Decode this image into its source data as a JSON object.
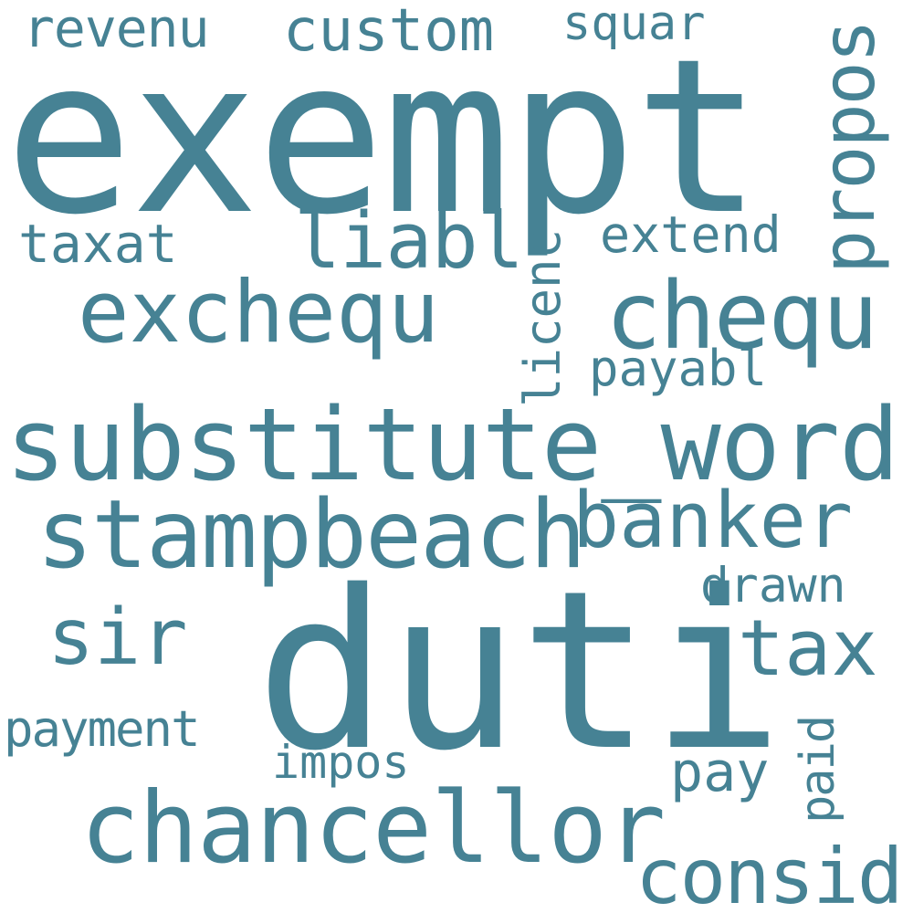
{
  "theme": {
    "word_color": "#468294",
    "background": "#ffffff"
  },
  "words": {
    "exempt": "exempt",
    "duti": "duti",
    "substitute_word": "substitute_word",
    "chancellor": "chancellor",
    "stampbeach": "stampbeach",
    "exchequ": "exchequ",
    "chequ": "chequ",
    "banker": "banker",
    "consid": "consid",
    "tax": "tax",
    "sir": "sir",
    "liabl": "liabl",
    "propos": "propos",
    "custom": "custom",
    "revenu": "revenu",
    "squar": "squar",
    "taxat": "taxat",
    "extend": "extend",
    "licenc": "licenc",
    "payabl": "payabl",
    "drawn": "drawn",
    "payment": "payment",
    "impos": "impos",
    "pay": "pay",
    "paid": "paid"
  }
}
